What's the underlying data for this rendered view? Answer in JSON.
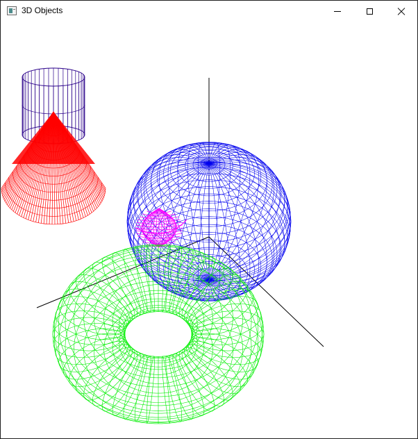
{
  "window": {
    "title": "3D Objects",
    "controls": [
      "minimize",
      "maximize",
      "close"
    ]
  },
  "scene": {
    "background": "#ffffff",
    "objects": [
      {
        "name": "cylinder",
        "color": "#2a008a",
        "render": "wireframe"
      },
      {
        "name": "cone",
        "color": "#ff0000",
        "render": "wireframe"
      },
      {
        "name": "sphere",
        "color": "#0000ee",
        "render": "wireframe"
      },
      {
        "name": "small-sphere",
        "color": "#ff00ff",
        "render": "wireframe"
      },
      {
        "name": "torus",
        "color": "#00ee00",
        "render": "wireframe"
      },
      {
        "name": "axes",
        "color": "#000000",
        "render": "lines"
      }
    ]
  },
  "icons": {
    "app": "app-window-icon",
    "minimize": "minimize-icon",
    "maximize": "maximize-icon",
    "close": "close-icon"
  }
}
